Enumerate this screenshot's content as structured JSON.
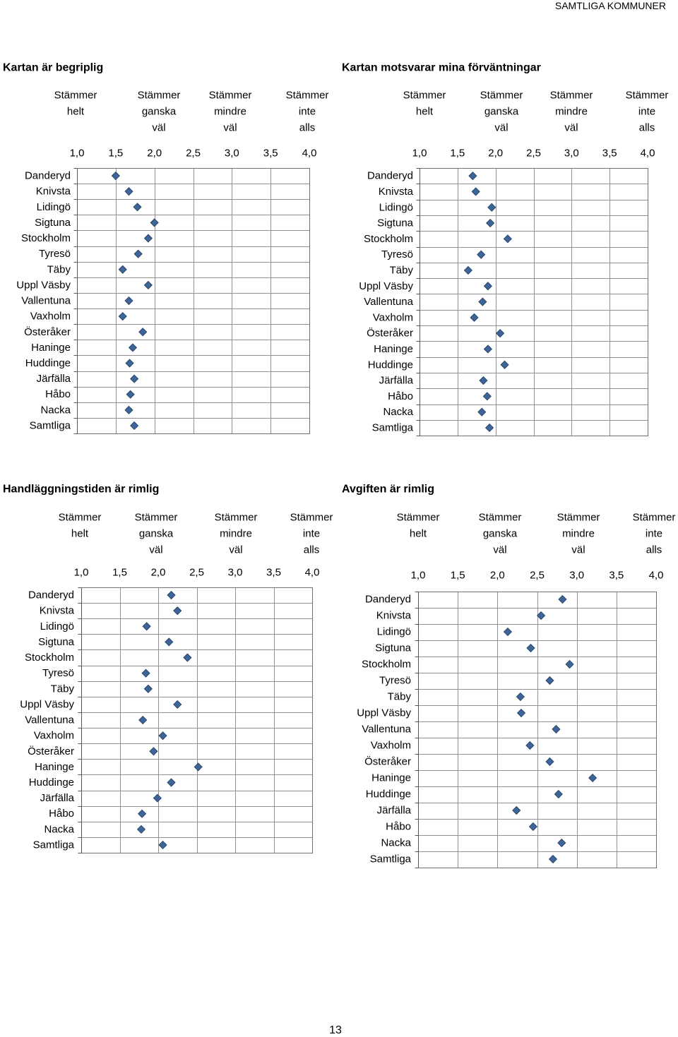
{
  "header": {
    "section": "SAMTLIGA KOMMUNER"
  },
  "footer": {
    "page_number": "13"
  },
  "chart_data": [
    {
      "type": "scatter",
      "title": "Kartan är begriplig",
      "scale_labels": [
        [
          "Stämmer",
          "helt"
        ],
        [
          "Stämmer",
          "ganska",
          "väl"
        ],
        [
          "Stämmer",
          "mindre",
          "väl"
        ],
        [
          "Stämmer",
          "inte",
          "alls"
        ]
      ],
      "x_ticks": [
        "1,0",
        "1,5",
        "2,0",
        "2,5",
        "3,0",
        "3,5",
        "4,0"
      ],
      "x_tick_values": [
        1,
        1.5,
        2,
        2.5,
        3,
        3.5,
        4
      ],
      "xlim": [
        1,
        4
      ],
      "categories": [
        "Danderyd",
        "Knivsta",
        "Lidingö",
        "Sigtuna",
        "Stockholm",
        "Tyresö",
        "Täby",
        "Uppl Väsby",
        "Vallentuna",
        "Vaxholm",
        "Österåker",
        "Haninge",
        "Huddinge",
        "Järfälla",
        "Håbo",
        "Nacka",
        "Samtliga"
      ],
      "values": [
        1.5,
        1.67,
        1.78,
        2.0,
        1.92,
        1.79,
        1.59,
        1.92,
        1.67,
        1.59,
        1.85,
        1.72,
        1.68,
        1.74,
        1.69,
        1.67,
        1.74
      ],
      "marker": "diamond",
      "marker_color": "#3D6597",
      "grid": true
    },
    {
      "type": "scatter",
      "title": "Kartan motsvarar mina förväntningar",
      "scale_labels": [
        [
          "Stämmer",
          "helt"
        ],
        [
          "Stämmer",
          "ganska",
          "väl"
        ],
        [
          "Stämmer",
          "mindre",
          "väl"
        ],
        [
          "Stämmer",
          "inte",
          "alls"
        ]
      ],
      "x_ticks": [
        "1,0",
        "1,5",
        "2,0",
        "2,5",
        "3,0",
        "3,5",
        "4,0"
      ],
      "x_tick_values": [
        1,
        1.5,
        2,
        2.5,
        3,
        3.5,
        4
      ],
      "xlim": [
        1,
        4
      ],
      "categories": [
        "Danderyd",
        "Knivsta",
        "Lidingö",
        "Sigtuna",
        "Stockholm",
        "Tyresö",
        "Täby",
        "Uppl Väsby",
        "Vallentuna",
        "Vaxholm",
        "Österåker",
        "Haninge",
        "Huddinge",
        "Järfälla",
        "Håbo",
        "Nacka",
        "Samtliga"
      ],
      "values": [
        1.7,
        1.74,
        1.95,
        1.93,
        2.16,
        1.81,
        1.64,
        1.9,
        1.83,
        1.72,
        2.06,
        1.9,
        2.12,
        1.84,
        1.89,
        1.82,
        1.92
      ],
      "marker": "diamond",
      "marker_color": "#3D6597",
      "grid": true
    },
    {
      "type": "scatter",
      "title": "Handläggningstiden är rimlig",
      "scale_labels": [
        [
          "Stämmer",
          "helt"
        ],
        [
          "Stämmer",
          "ganska",
          "väl"
        ],
        [
          "Stämmer",
          "mindre",
          "väl"
        ],
        [
          "Stämmer",
          "inte",
          "alls"
        ]
      ],
      "x_ticks": [
        "1,0",
        "1,5",
        "2,0",
        "2,5",
        "3,0",
        "3,5",
        "4,0"
      ],
      "x_tick_values": [
        1,
        1.5,
        2,
        2.5,
        3,
        3.5,
        4
      ],
      "xlim": [
        1,
        4
      ],
      "categories": [
        "Danderyd",
        "Knivsta",
        "Lidingö",
        "Sigtuna",
        "Stockholm",
        "Tyresö",
        "Täby",
        "Uppl Väsby",
        "Vallentuna",
        "Vaxholm",
        "Österåker",
        "Haninge",
        "Huddinge",
        "Järfälla",
        "Håbo",
        "Nacka",
        "Samtliga"
      ],
      "values": [
        2.17,
        2.25,
        1.85,
        2.14,
        2.38,
        1.84,
        1.87,
        2.25,
        1.8,
        2.06,
        1.94,
        2.52,
        2.17,
        1.99,
        1.79,
        1.78,
        2.06
      ],
      "marker": "diamond",
      "marker_color": "#3D6597",
      "grid": true
    },
    {
      "type": "scatter",
      "title": "Avgiften är rimlig",
      "scale_labels": [
        [
          "Stämmer",
          "helt"
        ],
        [
          "Stämmer",
          "ganska",
          "väl"
        ],
        [
          "Stämmer",
          "mindre",
          "väl"
        ],
        [
          "Stämmer",
          "inte",
          "alls"
        ]
      ],
      "x_ticks": [
        "1,0",
        "1,5",
        "2,0",
        "2,5",
        "3,0",
        "3,5",
        "4,0"
      ],
      "x_tick_values": [
        1,
        1.5,
        2,
        2.5,
        3,
        3.5,
        4
      ],
      "xlim": [
        1,
        4
      ],
      "categories": [
        "Danderyd",
        "Knivsta",
        "Lidingö",
        "Sigtuna",
        "Stockholm",
        "Tyresö",
        "Täby",
        "Uppl Väsby",
        "Vallentuna",
        "Vaxholm",
        "Österåker",
        "Haninge",
        "Huddinge",
        "Järfälla",
        "Håbo",
        "Nacka",
        "Samtliga"
      ],
      "values": [
        2.82,
        2.55,
        2.13,
        2.42,
        2.91,
        2.66,
        2.29,
        2.3,
        2.74,
        2.41,
        2.66,
        3.2,
        2.77,
        2.24,
        2.45,
        2.81,
        2.7
      ],
      "marker": "diamond",
      "marker_color": "#3D6597",
      "grid": true
    }
  ]
}
